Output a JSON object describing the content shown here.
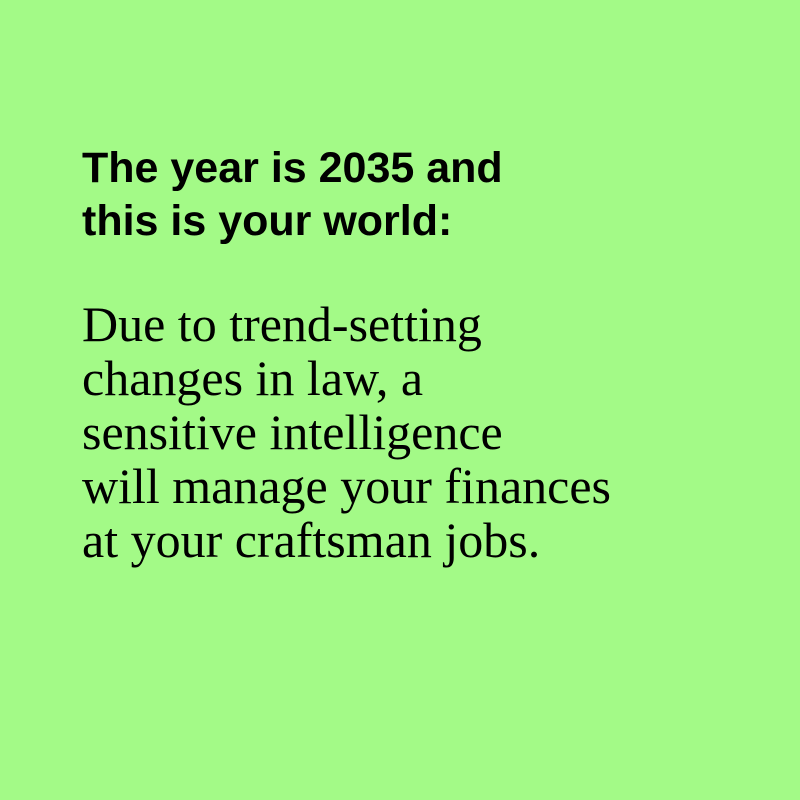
{
  "colors": {
    "background": "#a3fa87",
    "text": "#000000"
  },
  "heading": {
    "lines": [
      "The year is 2035 and",
      "this is your world:"
    ]
  },
  "body": {
    "lines": [
      "Due to trend-setting",
      "changes in law, a",
      "sensitive intelligence",
      "will manage your finances",
      "at your craftsman jobs."
    ]
  }
}
